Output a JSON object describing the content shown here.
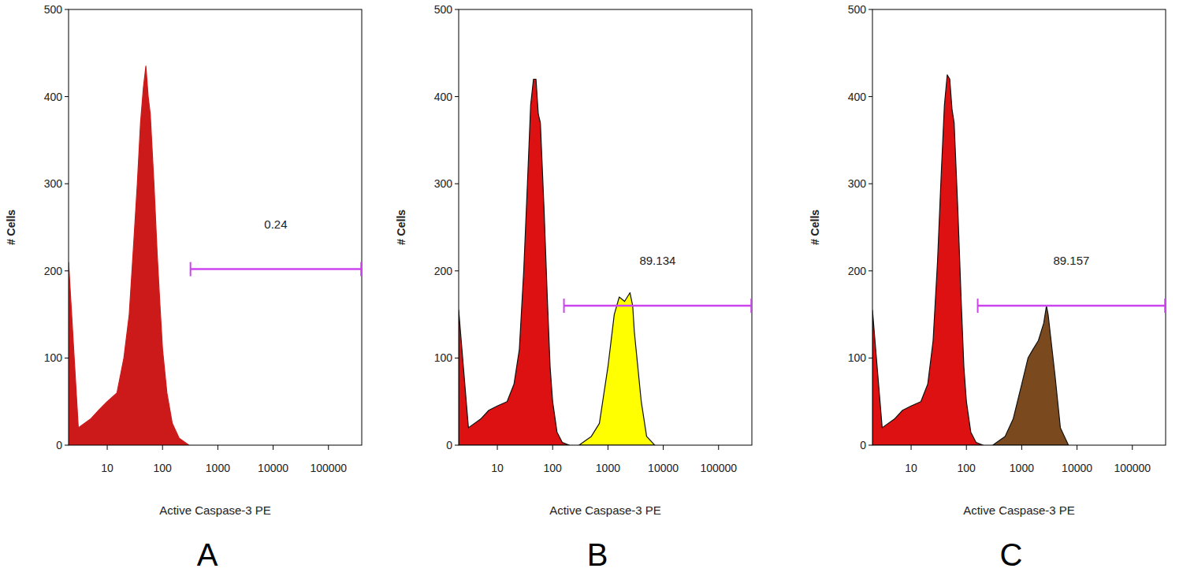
{
  "chart_data": [
    {
      "type": "area",
      "title": "A",
      "x_label": "Active Caspase-3 PE",
      "y_label": "# Cells",
      "log": "x",
      "xlim": [
        2,
        400000
      ],
      "ylim": [
        0,
        500
      ],
      "xticks": [
        10,
        100,
        1000,
        10000,
        100000
      ],
      "yticks": [
        0,
        100,
        200,
        300,
        400,
        500
      ],
      "x": [
        2,
        3,
        5,
        7,
        10,
        15,
        20,
        25,
        30,
        35,
        40,
        45,
        50,
        55,
        60,
        70,
        80,
        90,
        100,
        120,
        150,
        200,
        300,
        500,
        700,
        1000,
        1300,
        1600,
        2000,
        2500,
        2800,
        3000,
        4000,
        5000,
        7000
      ],
      "series": [
        {
          "color": "#cc1a1a",
          "values": [
            210,
            20,
            30,
            40,
            50,
            60,
            100,
            150,
            230,
            300,
            370,
            410,
            435,
            400,
            380,
            300,
            220,
            160,
            110,
            60,
            25,
            8,
            0,
            null,
            null,
            null,
            null,
            null,
            null,
            null,
            null,
            null,
            null,
            null,
            null
          ]
        }
      ],
      "annotations": [
        {
          "text": "0.24",
          "x": [
            320,
            390000
          ],
          "y": 202
        }
      ]
    },
    {
      "type": "area",
      "title": "B",
      "x_label": "Active Caspase-3 PE",
      "y_label": "# Cells",
      "log": "x",
      "xlim": [
        2,
        400000
      ],
      "ylim": [
        0,
        500
      ],
      "xticks": [
        10,
        100,
        1000,
        10000,
        100000
      ],
      "yticks": [
        0,
        100,
        200,
        300,
        400,
        500
      ],
      "x": [
        2,
        3,
        5,
        7,
        10,
        15,
        20,
        25,
        30,
        35,
        40,
        45,
        50,
        55,
        60,
        70,
        80,
        90,
        100,
        120,
        150,
        200,
        300,
        500,
        700,
        1000,
        1300,
        1600,
        2000,
        2500,
        2800,
        3000,
        4000,
        5000,
        7000
      ],
      "series": [
        {
          "color": "#dd1111",
          "values": [
            155,
            20,
            30,
            40,
            45,
            50,
            70,
            110,
            200,
            300,
            390,
            420,
            420,
            380,
            370,
            270,
            170,
            90,
            50,
            15,
            3,
            0,
            null,
            null,
            null,
            null,
            null,
            null,
            null,
            null,
            null,
            null,
            null,
            null,
            null
          ]
        },
        {
          "color": "#ffff00",
          "values": [
            null,
            null,
            null,
            null,
            null,
            null,
            null,
            null,
            null,
            null,
            null,
            null,
            null,
            null,
            null,
            null,
            null,
            null,
            null,
            null,
            null,
            null,
            0,
            10,
            25,
            90,
            150,
            170,
            165,
            175,
            160,
            130,
            50,
            10,
            0
          ]
        }
      ],
      "annotations": [
        {
          "text": "89.134",
          "x": [
            160,
            390000
          ],
          "y": 160
        }
      ]
    },
    {
      "type": "area",
      "title": "C",
      "x_label": "Active Caspase-3 PE",
      "y_label": "# Cells",
      "log": "x",
      "xlim": [
        2,
        400000
      ],
      "ylim": [
        0,
        500
      ],
      "xticks": [
        10,
        100,
        1000,
        10000,
        100000
      ],
      "yticks": [
        0,
        100,
        200,
        300,
        400,
        500
      ],
      "x": [
        2,
        3,
        5,
        7,
        10,
        15,
        20,
        25,
        30,
        35,
        40,
        45,
        50,
        55,
        60,
        70,
        80,
        90,
        100,
        120,
        150,
        200,
        300,
        500,
        700,
        1000,
        1300,
        1600,
        2000,
        2500,
        2800,
        3000,
        4000,
        5000,
        7000
      ],
      "series": [
        {
          "color": "#dd1111",
          "values": [
            155,
            20,
            30,
            40,
            45,
            50,
            70,
            120,
            210,
            310,
            390,
            425,
            420,
            385,
            370,
            270,
            170,
            90,
            50,
            15,
            3,
            0,
            null,
            null,
            null,
            null,
            null,
            null,
            null,
            null,
            null,
            null,
            null,
            null,
            null
          ]
        },
        {
          "color": "#7a4a1e",
          "values": [
            null,
            null,
            null,
            null,
            null,
            null,
            null,
            null,
            null,
            null,
            null,
            null,
            null,
            null,
            null,
            null,
            null,
            null,
            null,
            null,
            null,
            null,
            0,
            10,
            30,
            70,
            100,
            110,
            120,
            140,
            160,
            150,
            80,
            20,
            0
          ]
        }
      ],
      "annotations": [
        {
          "text": "89.157",
          "x": [
            160,
            390000
          ],
          "y": 160
        }
      ]
    }
  ]
}
